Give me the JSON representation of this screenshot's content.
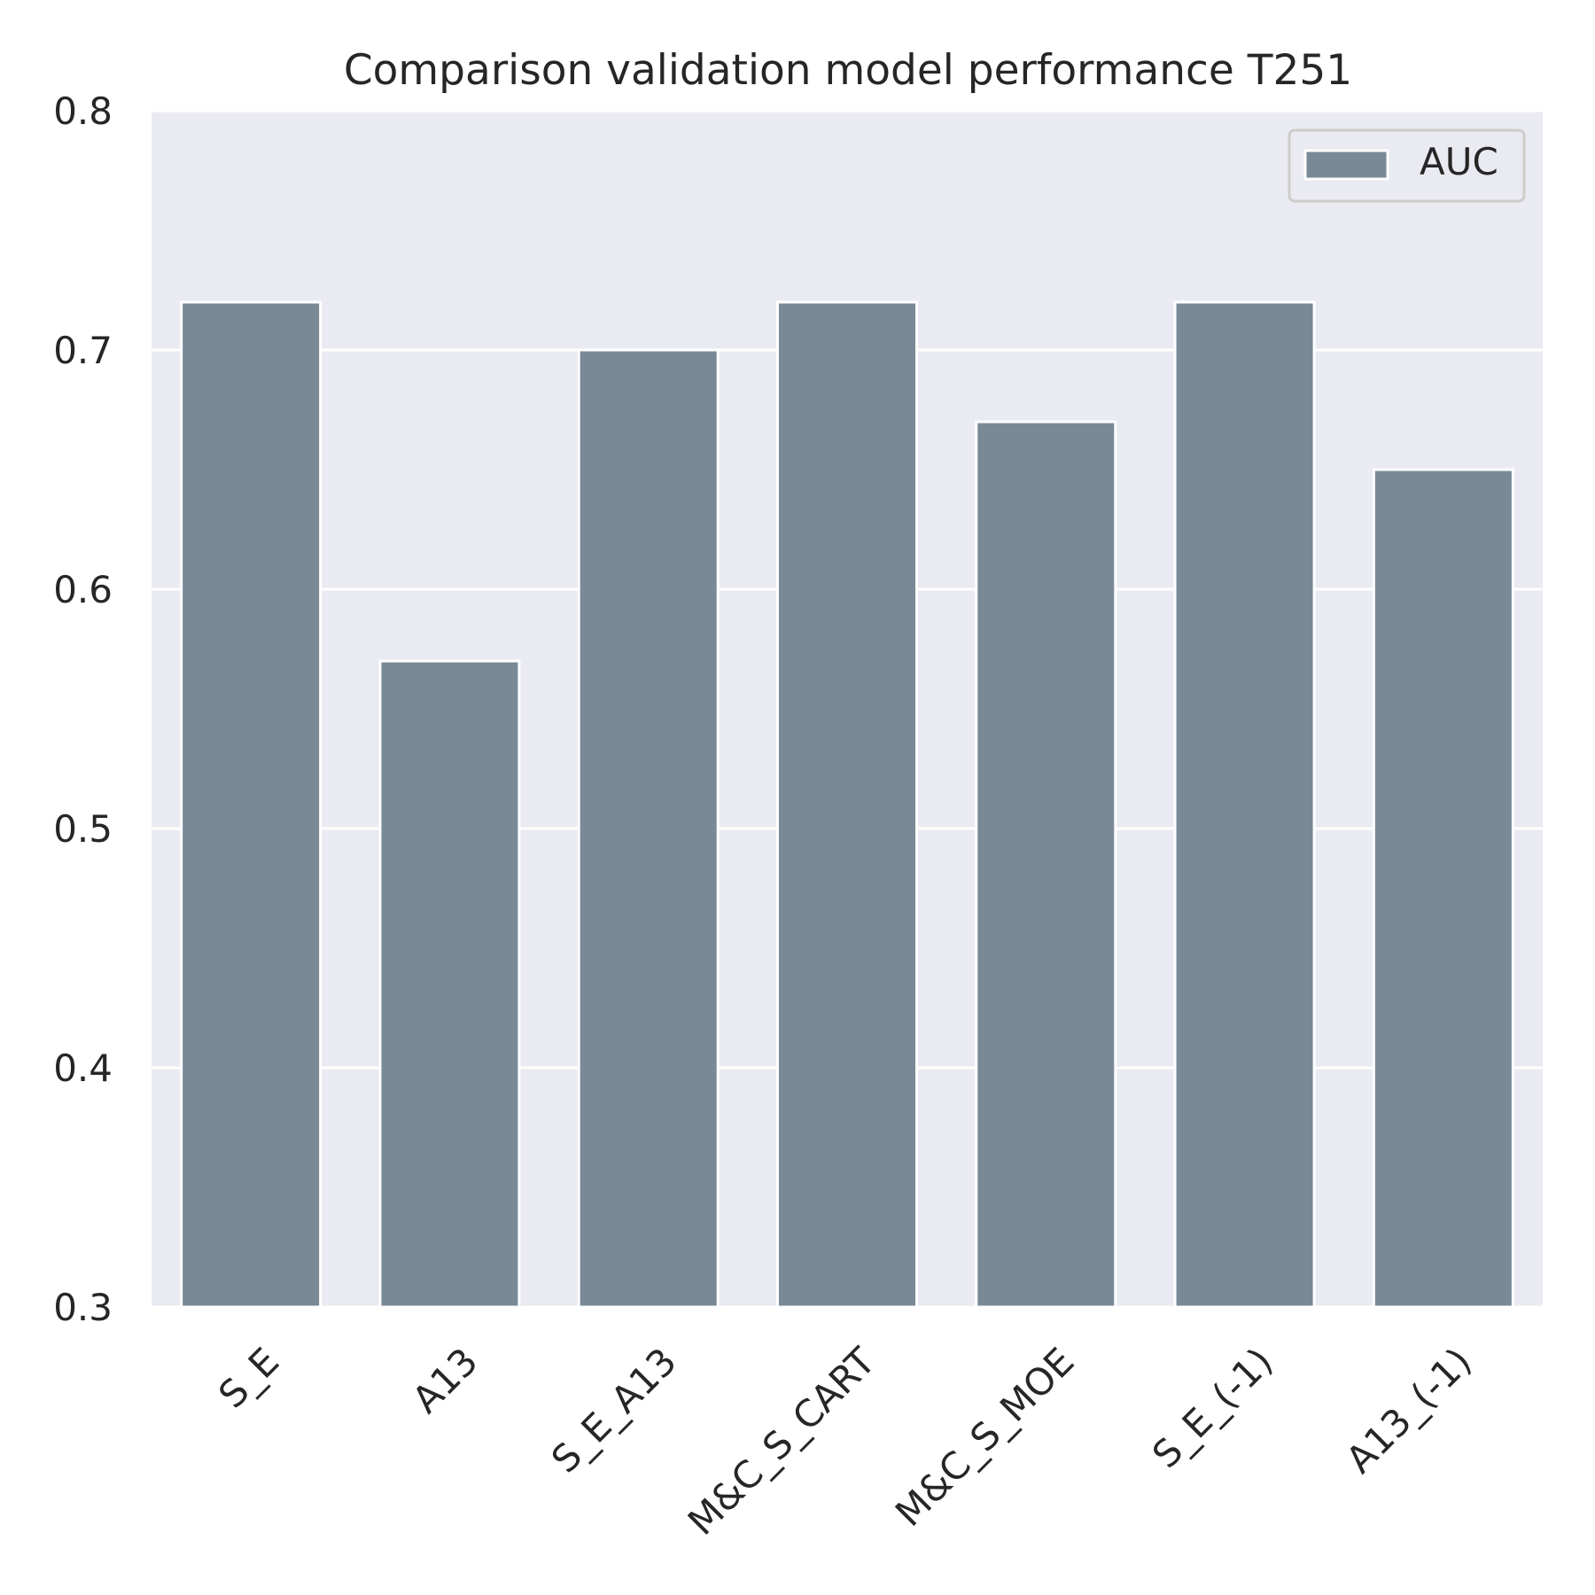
{
  "chart_data": {
    "type": "bar",
    "title": "Comparison validation model performance T251",
    "xlabel": "",
    "ylabel": "",
    "categories": [
      "S_E",
      "A13",
      "S_E_A13",
      "M&C_S_CART",
      "M&C_S_MOE",
      "S_E_(-1)",
      "A13_(-1)"
    ],
    "series": [
      {
        "name": "AUC",
        "values": [
          0.72,
          0.57,
          0.7,
          0.72,
          0.67,
          0.72,
          0.65
        ]
      }
    ],
    "ylim": [
      0.3,
      0.8
    ],
    "yticks": [
      "0.3",
      "0.4",
      "0.5",
      "0.6",
      "0.7",
      "0.8"
    ],
    "grid": true,
    "legend_position": "top-right",
    "x_tick_rotation_deg": -45,
    "colors": {
      "bar": "#798996",
      "plot_background": "#eaeaf2",
      "grid": "#ffffff",
      "text": "#262626"
    }
  }
}
